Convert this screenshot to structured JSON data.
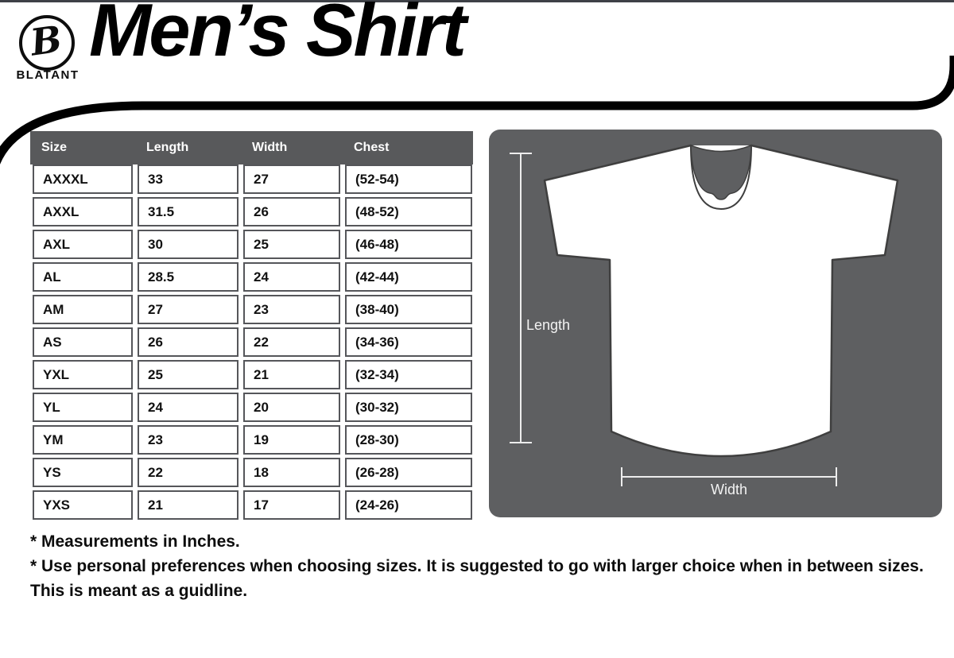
{
  "brand": {
    "logo_letter": "B",
    "name": "BLATANT"
  },
  "title": "Men’s Shirt",
  "chart_data": {
    "type": "table",
    "title": "Men’s Shirt sizing chart",
    "columns": [
      "Size",
      "Length",
      "Width",
      "Chest"
    ],
    "rows": [
      [
        "AXXXL",
        "33",
        "27",
        "(52-54)"
      ],
      [
        "AXXL",
        "31.5",
        "26",
        "(48-52)"
      ],
      [
        "AXL",
        "30",
        "25",
        "(46-48)"
      ],
      [
        "AL",
        "28.5",
        "24",
        "(42-44)"
      ],
      [
        "AM",
        "27",
        "23",
        "(38-40)"
      ],
      [
        "AS",
        "26",
        "22",
        "(34-36)"
      ],
      [
        "YXL",
        "25",
        "21",
        "(32-34)"
      ],
      [
        "YL",
        "24",
        "20",
        "(30-32)"
      ],
      [
        "YM",
        "23",
        "19",
        "(28-30)"
      ],
      [
        "YS",
        "22",
        "18",
        "(26-28)"
      ],
      [
        "YXS",
        "21",
        "17",
        "(24-26)"
      ]
    ]
  },
  "diagram": {
    "length_label": "Length",
    "width_label": "Width"
  },
  "notes": [
    "* Measurements in Inches.",
    "* Use personal preferences when choosing sizes. It is suggested to go with larger choice when in between sizes. This is meant as a guidline."
  ],
  "colors": {
    "table_header_gray": "#58595b",
    "panel_gray": "#5e5f61",
    "measure_line": "#ededed",
    "ink": "#000000"
  }
}
